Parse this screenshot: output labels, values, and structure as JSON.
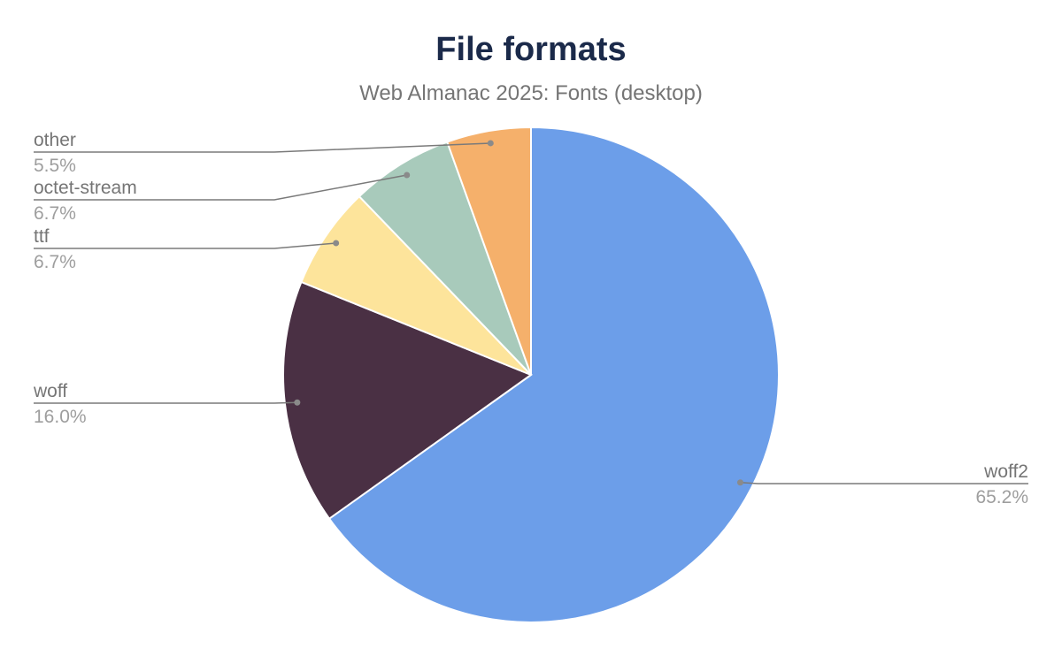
{
  "chart_data": {
    "type": "pie",
    "title": "File formats",
    "subtitle": "Web Almanac 2025: Fonts (desktop)",
    "slices": [
      {
        "label": "woff2",
        "value": 65.2,
        "value_label": "65.2%",
        "color": "#6c9ee9"
      },
      {
        "label": "woff",
        "value": 16.0,
        "value_label": "16.0%",
        "color": "#4a3044"
      },
      {
        "label": "ttf",
        "value": 6.7,
        "value_label": "6.7%",
        "color": "#fde49b"
      },
      {
        "label": "octet-stream",
        "value": 6.7,
        "value_label": "6.7%",
        "color": "#a8cabb"
      },
      {
        "label": "other",
        "value": 5.5,
        "value_label": "5.5%",
        "color": "#f5b06b"
      }
    ],
    "start_angle": "top",
    "direction": "clockwise",
    "legend": "none",
    "label_style": "leader-lines"
  }
}
